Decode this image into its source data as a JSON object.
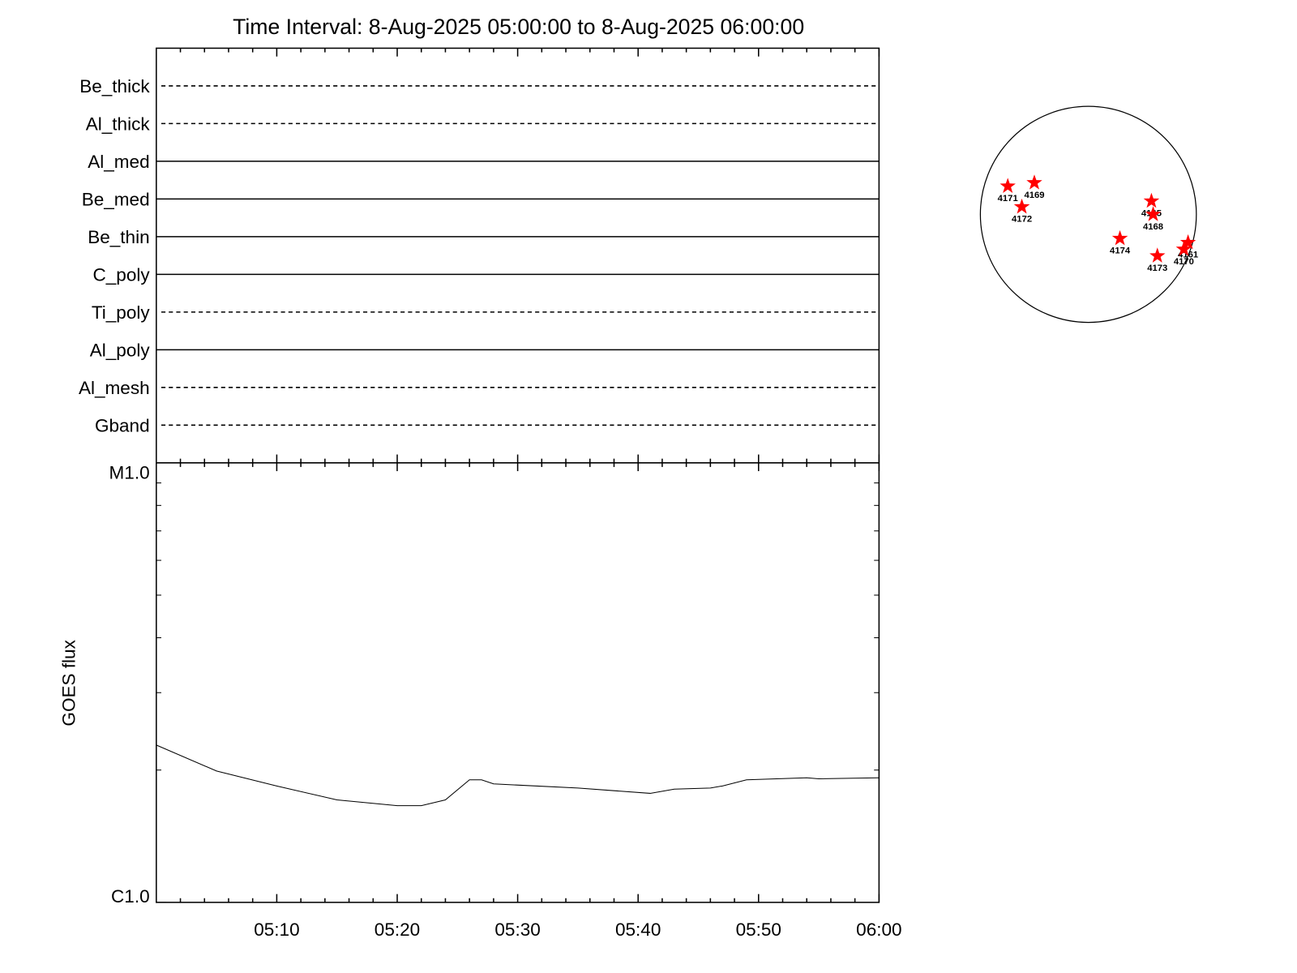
{
  "chart_data": [
    {
      "type": "filter-timeline",
      "title": "Time Interval:  8-Aug-2025 05:00:00 to  8-Aug-2025 06:00:00",
      "categories": [
        "Be_thick",
        "Al_thick",
        "Al_med",
        "Be_med",
        "Be_thin",
        "C_poly",
        "Ti_poly",
        "Al_poly",
        "Al_mesh",
        "Gband"
      ],
      "line_styles": [
        "dashed",
        "dashed",
        "solid",
        "solid",
        "solid",
        "solid",
        "dashed",
        "solid",
        "dashed",
        "dashed"
      ],
      "color": "#000000"
    },
    {
      "type": "line",
      "y_label": "GOES flux",
      "log_y": true,
      "color": "#000000",
      "x": [
        "05:00",
        "05:05",
        "05:10",
        "05:15",
        "05:20",
        "05:22",
        "05:24",
        "05:26",
        "05:27",
        "05:28",
        "05:35",
        "05:41",
        "05:43",
        "05:46",
        "05:47",
        "05:49",
        "05:54",
        "05:55",
        "06:00"
      ],
      "values": [
        2.28e-06,
        1.99e-06,
        1.84e-06,
        1.71e-06,
        1.66e-06,
        1.66e-06,
        1.71e-06,
        1.9e-06,
        1.9e-06,
        1.86e-06,
        1.82e-06,
        1.77e-06,
        1.81e-06,
        1.82e-06,
        1.84e-06,
        1.9e-06,
        1.92e-06,
        1.91e-06,
        1.92e-06
      ],
      "xlim": [
        "05:00",
        "06:00"
      ],
      "xticks": [
        "05:10",
        "05:20",
        "05:30",
        "05:40",
        "05:50",
        "06:00"
      ],
      "minor_xticks": [
        "05:02",
        "05:04",
        "05:06",
        "05:08",
        "05:12",
        "05:14",
        "05:16",
        "05:18",
        "05:22",
        "05:24",
        "05:26",
        "05:28",
        "05:32",
        "05:34",
        "05:36",
        "05:38",
        "05:42",
        "05:44",
        "05:46",
        "05:48",
        "05:52",
        "05:54",
        "05:56",
        "05:58"
      ],
      "ylim": [
        1e-06,
        1e-05
      ],
      "yticks": [
        {
          "value": 1e-05,
          "label": "M1.0"
        },
        {
          "value": 1e-06,
          "label": "C1.0"
        }
      ],
      "minor_yticks": [
        2e-06,
        3e-06,
        4e-06,
        5e-06,
        6e-06,
        7e-06,
        8e-06,
        9e-06
      ]
    },
    {
      "type": "disk",
      "xlim": [
        -950,
        950
      ],
      "ylim": [
        -950,
        950
      ],
      "marker_color": "#ff0000",
      "points": [
        {
          "label": "4171",
          "x": -709,
          "y": 248
        },
        {
          "label": "4169",
          "x": -475,
          "y": 278
        },
        {
          "label": "4172",
          "x": -585,
          "y": 66
        },
        {
          "label": "4165",
          "x": 555,
          "y": 117
        },
        {
          "label": "4168",
          "x": 570,
          "y": 0
        },
        {
          "label": "4174",
          "x": 278,
          "y": -212
        },
        {
          "label": "4173",
          "x": 607,
          "y": -365
        },
        {
          "label": "4161",
          "x": 877,
          "y": -248
        },
        {
          "label": "4170",
          "x": 840,
          "y": -307
        }
      ]
    }
  ]
}
